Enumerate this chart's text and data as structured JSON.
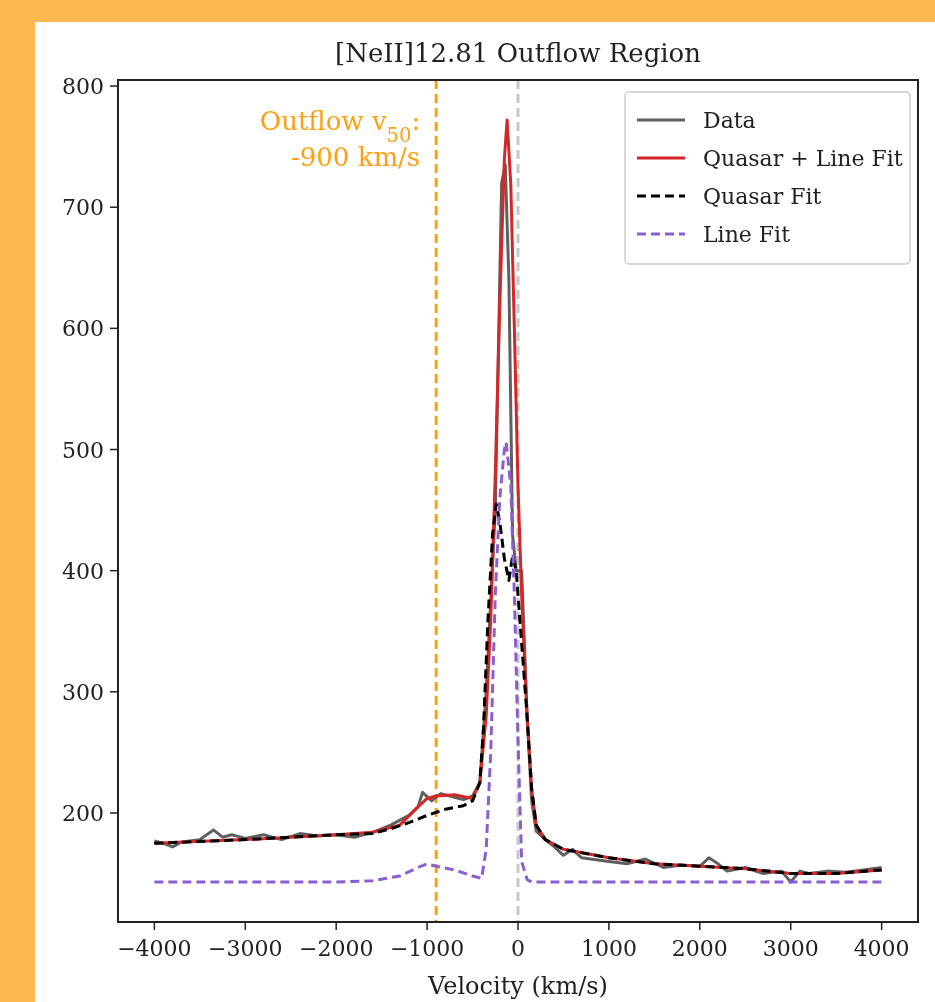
{
  "chart_data": {
    "type": "line",
    "title": "[NeII]12.81 Outflow Region",
    "xlabel": "Velocity (km/s)",
    "xlim": [
      -4400,
      4400
    ],
    "ylim": [
      110,
      805
    ],
    "xticks": [
      {
        "value": -4000,
        "label": "−4000"
      },
      {
        "value": -3000,
        "label": "−3000"
      },
      {
        "value": -2000,
        "label": "−2000"
      },
      {
        "value": -1000,
        "label": "−1000"
      },
      0,
      1000,
      2000,
      3000,
      4000
    ],
    "yticks": [
      200,
      300,
      400,
      500,
      600,
      700,
      800
    ],
    "grid": false,
    "legend": "top right",
    "ref_lines": [
      {
        "axis": "x",
        "value": -900,
        "label": "Outflow v$_{50}$:\n-900 km/s",
        "color": "#ff9f0f",
        "line_style": "dashed"
      },
      {
        "axis": "x",
        "value": 0,
        "color": "#c8c8c8",
        "line_style": "dashed"
      }
    ],
    "series": [
      {
        "name": "Data",
        "color": "#606060",
        "line_style": "solid",
        "x": [
          -4000,
          -3900,
          -3800,
          -3700,
          -3500,
          -3350,
          -3250,
          -3150,
          -3000,
          -2800,
          -2600,
          -2400,
          -2200,
          -2000,
          -1800,
          -1600,
          -1400,
          -1200,
          -1100,
          -1050,
          -950,
          -850,
          -700,
          -600,
          -500,
          -420,
          -350,
          -250,
          -180,
          -140,
          -100,
          -60,
          -20,
          40,
          100,
          150,
          200,
          300,
          400,
          500,
          600,
          700,
          800,
          1000,
          1200,
          1400,
          1600,
          1800,
          2000,
          2100,
          2200,
          2300,
          2500,
          2700,
          2900,
          3000,
          3100,
          3200,
          3400,
          3600,
          3800,
          4000
        ],
        "values": [
          177,
          175,
          172,
          176,
          178,
          186,
          180,
          182,
          179,
          182,
          178,
          183,
          181,
          182,
          180,
          184,
          190,
          198,
          205,
          217,
          210,
          216,
          213,
          211,
          214,
          225,
          300,
          450,
          720,
          735,
          640,
          430,
          400,
          400,
          280,
          210,
          185,
          178,
          172,
          165,
          170,
          163,
          162,
          160,
          158,
          162,
          155,
          157,
          156,
          163,
          158,
          152,
          155,
          150,
          152,
          143,
          152,
          150,
          152,
          151,
          153,
          155
        ]
      },
      {
        "name": "Quasar + Line Fit",
        "color": "#d62728",
        "line_style": "solid",
        "x": [
          -4000,
          -3000,
          -2000,
          -1600,
          -1300,
          -1100,
          -1000,
          -900,
          -700,
          -500,
          -420,
          -350,
          -300,
          -250,
          -200,
          -150,
          -120,
          -80,
          -40,
          0,
          40,
          100,
          150,
          200,
          300,
          500,
          1000,
          1500,
          2000,
          2500,
          3000,
          3500,
          4000
        ],
        "values": [
          175,
          178,
          182,
          184,
          190,
          205,
          212,
          214,
          215,
          212,
          225,
          280,
          360,
          480,
          620,
          740,
          772,
          720,
          600,
          470,
          380,
          280,
          220,
          190,
          178,
          170,
          163,
          158,
          156,
          154,
          150,
          150,
          153
        ]
      },
      {
        "name": "Quasar Fit",
        "color": "#000000",
        "line_style": "dashed",
        "x": [
          -4000,
          -3000,
          -2000,
          -1600,
          -1400,
          -1200,
          -1000,
          -800,
          -600,
          -500,
          -420,
          -380,
          -330,
          -280,
          -240,
          -200,
          -150,
          -100,
          -60,
          -20,
          50,
          100,
          150,
          200,
          300,
          500,
          1000,
          1500,
          2000,
          2500,
          3000,
          3500,
          4000
        ],
        "values": [
          175,
          178,
          182,
          183,
          187,
          192,
          198,
          203,
          206,
          210,
          225,
          270,
          360,
          430,
          455,
          440,
          410,
          392,
          412,
          400,
          330,
          280,
          220,
          190,
          178,
          170,
          163,
          158,
          156,
          154,
          150,
          150,
          153
        ]
      },
      {
        "name": "Line Fit",
        "color": "#8c5fd0",
        "line_style": "dashed",
        "x": [
          -4000,
          -2000,
          -1600,
          -1300,
          -1100,
          -1000,
          -900,
          -700,
          -500,
          -400,
          -350,
          -300,
          -250,
          -200,
          -150,
          -130,
          -80,
          -40,
          0,
          40,
          100,
          150,
          200,
          4000
        ],
        "values": [
          143,
          143,
          144,
          148,
          155,
          158,
          156,
          153,
          148,
          146,
          170,
          250,
          380,
          460,
          500,
          506,
          470,
          380,
          260,
          160,
          145,
          143,
          143,
          143
        ]
      }
    ]
  }
}
